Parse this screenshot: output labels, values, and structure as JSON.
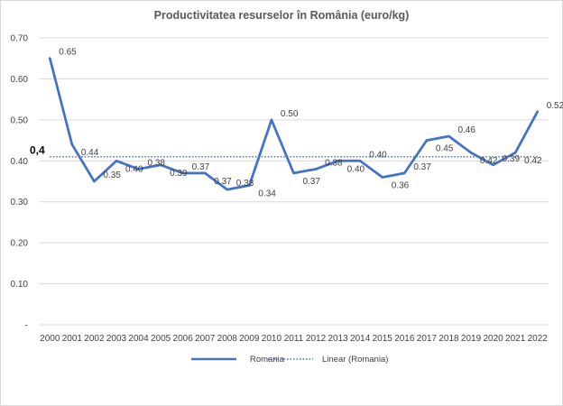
{
  "chart_data": {
    "type": "line",
    "title": "Productivitatea resurselor în România (euro/kg)",
    "x": [
      "2000",
      "2001",
      "2002",
      "2003",
      "2004",
      "2005",
      "2006",
      "2007",
      "2008",
      "2009",
      "2010",
      "2011",
      "2012",
      "2013",
      "2014",
      "2015",
      "2016",
      "2017",
      "2018",
      "2019",
      "2020",
      "2021",
      "2022"
    ],
    "series": [
      {
        "name": "Romania",
        "values": [
          0.65,
          0.44,
          0.35,
          0.4,
          0.38,
          0.39,
          0.37,
          0.37,
          0.33,
          0.34,
          0.5,
          0.37,
          0.38,
          0.4,
          0.4,
          0.36,
          0.37,
          0.45,
          0.46,
          0.42,
          0.39,
          0.42,
          0.52
        ],
        "labels": [
          "0.65",
          "0.44",
          "0.35",
          "0.40",
          "0.38",
          "0.39",
          "0.37",
          "0.37",
          "0.33",
          "0.34",
          "0.50",
          "0.37",
          "0.38",
          "0.40",
          "0.40",
          "0.36",
          "0.37",
          "0.45",
          "0.46",
          "0.42",
          "0.39",
          "0.42",
          "0.52"
        ],
        "color": "#4472c4"
      }
    ],
    "trendline": {
      "name": "Linear (Romania)",
      "value": 0.41,
      "label": "0,4",
      "color": "#4472c4",
      "style": "dotted"
    },
    "y_ticks": [
      {
        "value": 0,
        "label": "-"
      },
      {
        "value": 0.1,
        "label": "0.10"
      },
      {
        "value": 0.2,
        "label": "0.20"
      },
      {
        "value": 0.3,
        "label": "0.30"
      },
      {
        "value": 0.4,
        "label": "0.40"
      },
      {
        "value": 0.5,
        "label": "0.50"
      },
      {
        "value": 0.6,
        "label": "0.60"
      },
      {
        "value": 0.7,
        "label": "0.70"
      }
    ],
    "ylim": [
      0,
      0.7
    ],
    "grid": true,
    "grid_color": "#d9d9d9",
    "legend_position": "bottom",
    "xlabel": "",
    "ylabel": ""
  }
}
